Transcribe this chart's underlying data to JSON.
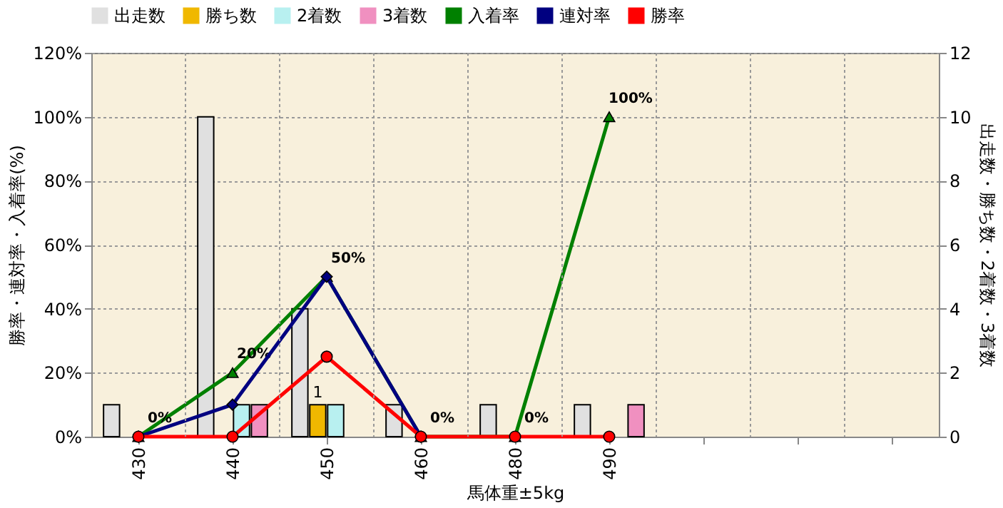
{
  "chart_data": {
    "type": "bar",
    "xlabel": "馬体重±5kg",
    "ylabel": "勝率・連対率・入着率(%)",
    "y2label": "出走数・勝ち数・2着数・3着数",
    "categories": [
      "430",
      "440",
      "450",
      "460",
      "480",
      "490",
      null,
      null,
      null
    ],
    "series": [
      {
        "name": "出走数",
        "axis": "y2",
        "color": "#e0e0e0",
        "values": [
          1,
          10,
          4,
          1,
          1,
          1,
          null,
          null,
          null
        ]
      },
      {
        "name": "勝ち数",
        "axis": "y2",
        "color": "#f0b800",
        "values": [
          null,
          null,
          1,
          null,
          null,
          null,
          null,
          null,
          null
        ],
        "value_labels": [
          null,
          null,
          "1",
          null,
          null,
          null,
          null,
          null,
          null
        ]
      },
      {
        "name": "2着数",
        "axis": "y2",
        "color": "#b8f0f0",
        "values": [
          null,
          1,
          1,
          null,
          null,
          null,
          null,
          null,
          null
        ]
      },
      {
        "name": "3着数",
        "axis": "y2",
        "color": "#f090c0",
        "values": [
          null,
          1,
          null,
          null,
          null,
          1,
          null,
          null,
          null
        ]
      },
      {
        "name": "入着率",
        "type": "line",
        "marker": "triangle",
        "color": "#008000",
        "values": [
          0,
          20,
          50,
          0,
          0,
          100,
          null,
          null,
          null
        ],
        "value_labels": [
          "0%",
          "20%",
          "50%",
          "0%",
          "0%",
          "100%",
          null,
          null,
          null
        ]
      },
      {
        "name": "連対率",
        "type": "line",
        "marker": "diamond",
        "color": "#000080",
        "values": [
          0,
          10,
          50,
          0,
          null,
          null,
          null,
          null,
          null
        ]
      },
      {
        "name": "勝率",
        "type": "line",
        "marker": "circle",
        "color": "#ff0000",
        "values": [
          0,
          0,
          25,
          0,
          0,
          0,
          null,
          null,
          null
        ]
      }
    ],
    "ylim": [
      0,
      120
    ],
    "yticks": [
      {
        "value": 0,
        "label": "0%"
      },
      {
        "value": 20,
        "label": "20%"
      },
      {
        "value": 40,
        "label": "40%"
      },
      {
        "value": 60,
        "label": "60%"
      },
      {
        "value": 80,
        "label": "80%"
      },
      {
        "value": 100,
        "label": "100%"
      },
      {
        "value": 120,
        "label": "120%"
      }
    ],
    "y2lim": [
      0,
      12
    ],
    "y2ticks": [
      0,
      2,
      4,
      6,
      8,
      10,
      12
    ],
    "grid": true,
    "legend": "top"
  }
}
